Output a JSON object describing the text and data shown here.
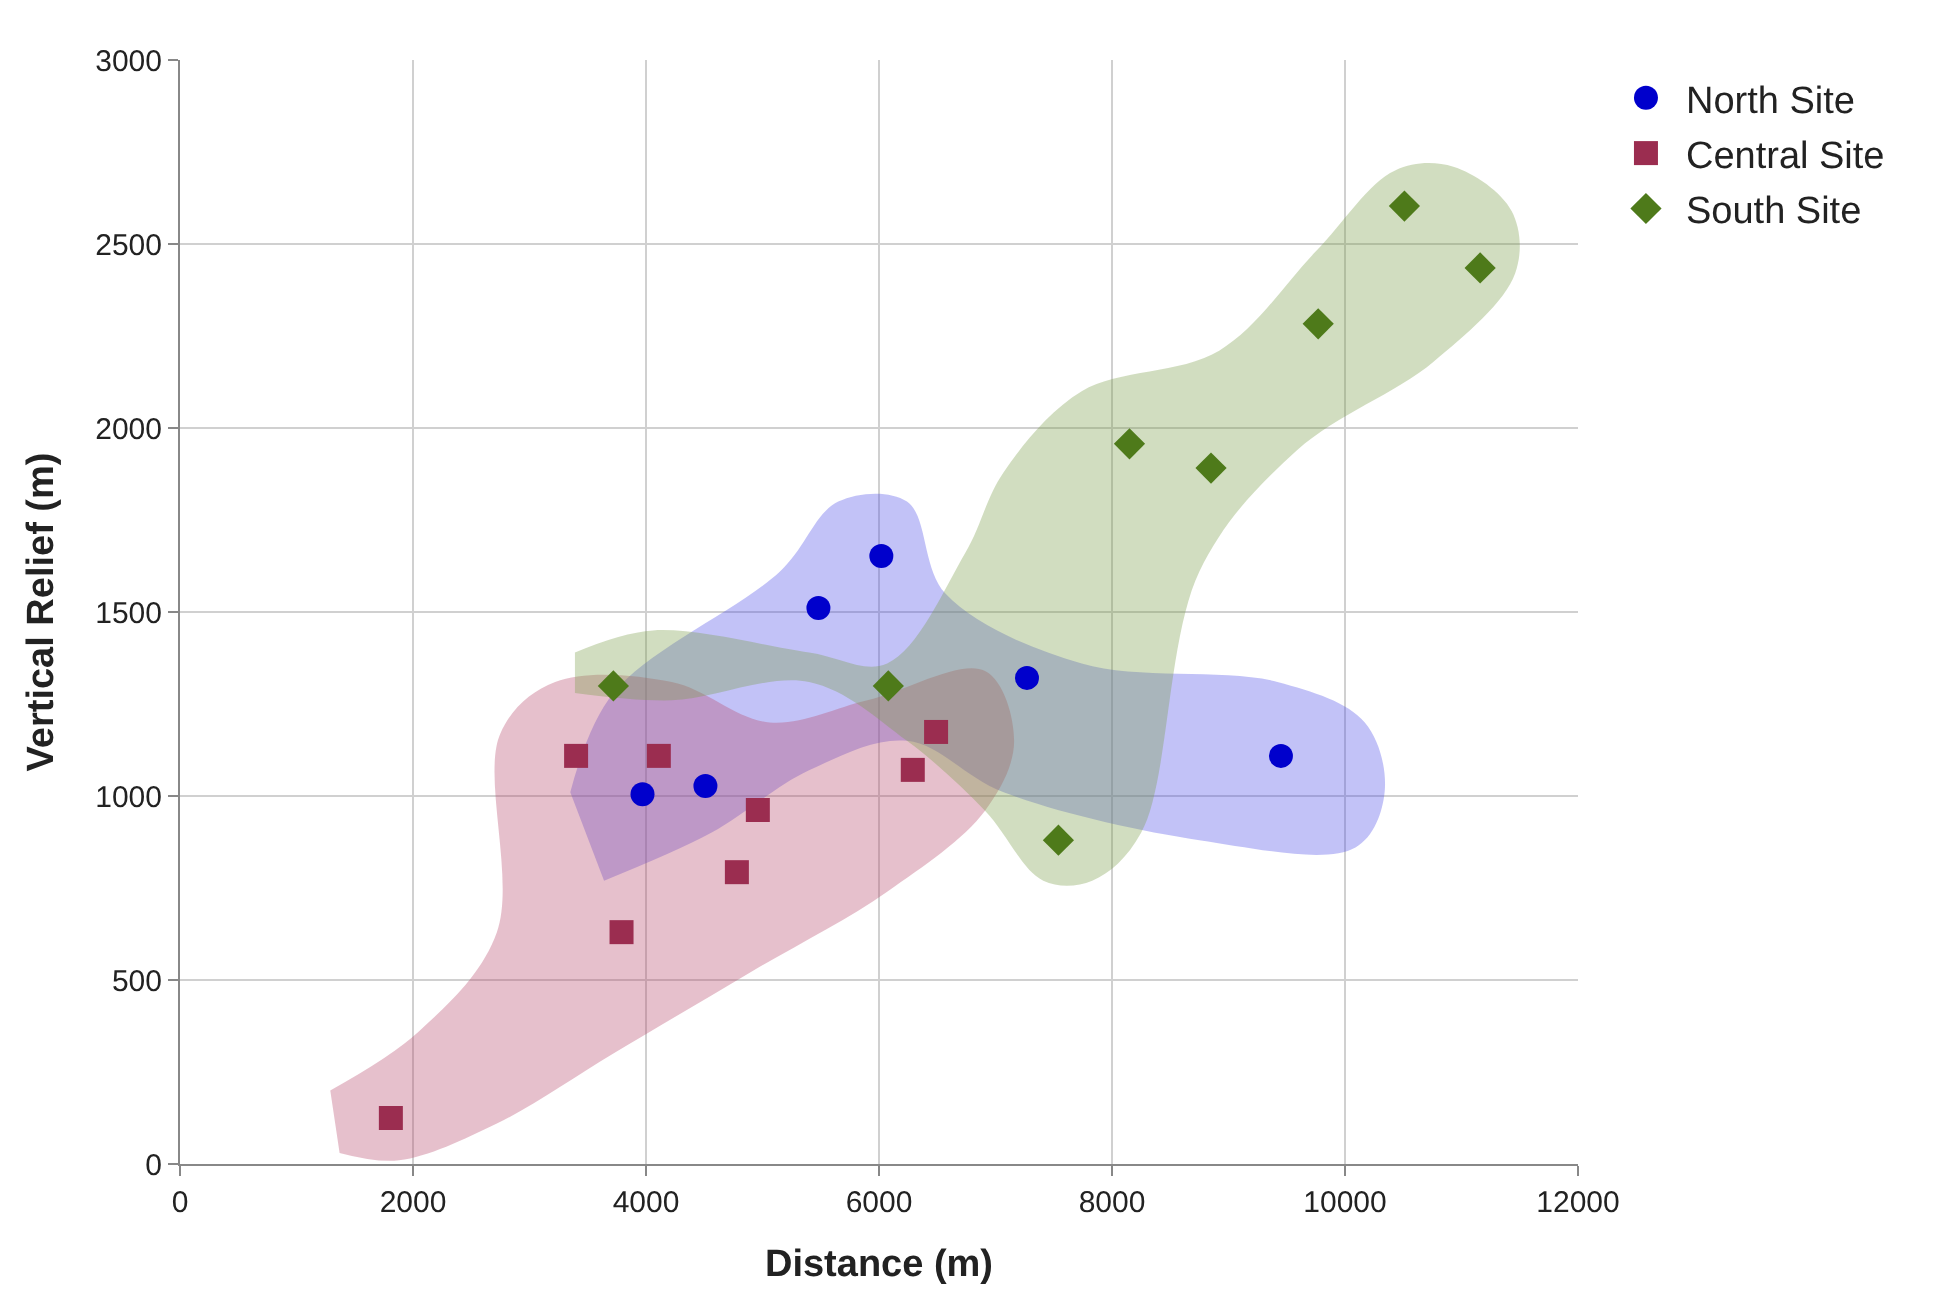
{
  "chart_data": {
    "type": "scatter",
    "xlabel": "Distance (m)",
    "ylabel": "Vertical Relief (m)",
    "xlim": [
      0,
      12000
    ],
    "xticks": [
      0,
      2000,
      4000,
      6000,
      8000,
      10000,
      12000
    ],
    "ylim": [
      0,
      3000
    ],
    "yticks": [
      0,
      500,
      1000,
      1500,
      2000,
      2500,
      3000
    ],
    "grid": true,
    "legend": "top right",
    "series": [
      {
        "type": "area",
        "color": "#5050e8",
        "x": [
          3350,
          3720,
          5150,
          5650,
          6240,
          6570,
          7740,
          9420,
          10170,
          10340,
          10090,
          8750,
          7070,
          6240,
          5400,
          4560,
          3640
        ],
        "values": [
          1010,
          1280,
          1610,
          1800,
          1800,
          1550,
          1360,
          1310,
          1200,
          1010,
          860,
          880,
          1010,
          1150,
          1070,
          900,
          770
        ]
      },
      {
        "type": "area",
        "color": "#b84a6c",
        "x": [
          1290,
          2050,
          2720,
          2750,
          3220,
          4220,
          5060,
          5900,
          6910,
          7160,
          6910,
          6070,
          4890,
          3720,
          2720,
          1880,
          1370
        ],
        "values": [
          200,
          360,
          630,
          1170,
          1310,
          1310,
          1200,
          1260,
          1340,
          1150,
          960,
          740,
          520,
          300,
          110,
          10,
          30
        ]
      },
      {
        "type": "area",
        "color": "#7a9e4a",
        "x": [
          3390,
          4060,
          5400,
          6070,
          6740,
          7070,
          7740,
          8920,
          9750,
          10430,
          10930,
          11430,
          11460,
          10760,
          9590,
          8750,
          8250,
          7830,
          7410,
          6910,
          6240,
          5400,
          4220,
          3390
        ],
        "values": [
          1390,
          1450,
          1390,
          1360,
          1660,
          1880,
          2100,
          2210,
          2480,
          2700,
          2710,
          2590,
          2420,
          2180,
          1940,
          1610,
          900,
          770,
          770,
          960,
          1150,
          1310,
          1260,
          1280
        ]
      },
      {
        "name": "North Site",
        "color": "#0000cc",
        "marker": "circle",
        "x": [
          3970,
          4510,
          5480,
          6020,
          7270,
          9450
        ],
        "values": [
          1005,
          1027,
          1511,
          1652,
          1321,
          1109
        ]
      },
      {
        "name": "Central Site",
        "color": "#9b2d50",
        "marker": "square",
        "x": [
          1810,
          3400,
          3790,
          4110,
          4780,
          4960,
          6290,
          6490
        ],
        "values": [
          125,
          1109,
          630,
          1109,
          793,
          962,
          1071,
          1174
        ]
      },
      {
        "name": "South Site",
        "color": "#4e7a1a",
        "marker": "diamond",
        "x": [
          3720,
          6080,
          7540,
          8150,
          8850,
          9770,
          10510,
          11160
        ],
        "values": [
          1299,
          1299,
          880,
          1957,
          1891,
          2283,
          2603,
          2435
        ]
      }
    ]
  }
}
